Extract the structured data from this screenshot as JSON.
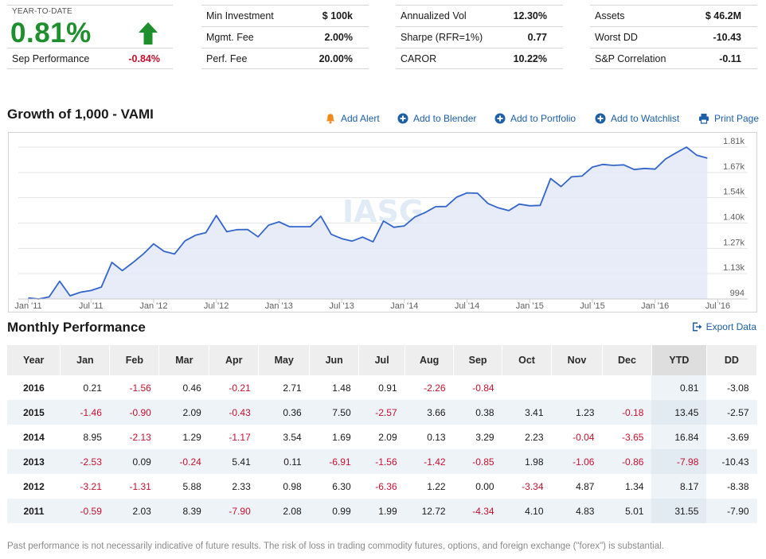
{
  "summary": {
    "ytd_caption": "YEAR-TO-DATE",
    "ytd_value": "0.81%",
    "ytd_arrow_icon": "arrow-up-icon",
    "sep_label": "Sep Performance",
    "sep_value": "-0.84%",
    "colors": {
      "positive": "#1e8f2d",
      "negative": "#c8102e"
    }
  },
  "stats": [
    [
      {
        "label": "Min Investment",
        "value": "$ 100k"
      },
      {
        "label": "Mgmt. Fee",
        "value": "2.00%"
      },
      {
        "label": "Perf. Fee",
        "value": "20.00%"
      }
    ],
    [
      {
        "label": "Annualized Vol",
        "value": "12.30%"
      },
      {
        "label": "Sharpe (RFR=1%)",
        "value": "0.77"
      },
      {
        "label": "CAROR",
        "value": "10.22%"
      }
    ],
    [
      {
        "label": "Assets",
        "value": "$ 46.2M"
      },
      {
        "label": "Worst DD",
        "value": "-10.43"
      },
      {
        "label": "S&P Correlation",
        "value": "-0.11"
      }
    ]
  ],
  "chart_section": {
    "title": "Growth of 1,000 - VAMI",
    "actions": [
      {
        "label": "Add Alert",
        "icon": "bell-icon"
      },
      {
        "label": "Add to Blender",
        "icon": "plus-circle-icon"
      },
      {
        "label": "Add to Portfolio",
        "icon": "plus-circle-icon"
      },
      {
        "label": "Add to Watchlist",
        "icon": "plus-circle-icon"
      },
      {
        "label": "Print Page",
        "icon": "printer-icon"
      }
    ],
    "watermark": "IASG"
  },
  "chart_data": {
    "type": "area",
    "title": "Growth of 1,000 - VAMI",
    "xlabel": "",
    "ylabel": "",
    "x_ticks": [
      "Jan '11",
      "Jul '11",
      "Jan '12",
      "Jul '12",
      "Jan '13",
      "Jul '13",
      "Jan '14",
      "Jul '14",
      "Jan '15",
      "Jul '15",
      "Jan '16",
      "Jul '16"
    ],
    "y_ticks": [
      {
        "value": 994,
        "label": "994"
      },
      {
        "value": 1130,
        "label": "1.13k"
      },
      {
        "value": 1265,
        "label": "1.27k"
      },
      {
        "value": 1400,
        "label": "1.40k"
      },
      {
        "value": 1536,
        "label": "1.54k"
      },
      {
        "value": 1671,
        "label": "1.67k"
      },
      {
        "value": 1807,
        "label": "1.81k"
      }
    ],
    "ylim": [
      994,
      1807
    ],
    "grid": true,
    "line_color": "#3366cc",
    "fill_color": "#e3e9f7",
    "series": [
      {
        "values": [
          1000,
          994,
          1005,
          1089,
          1011,
          1030,
          1039,
          1058,
          1190,
          1146,
          1188,
          1234,
          1289,
          1249,
          1235,
          1305,
          1335,
          1349,
          1441,
          1354,
          1365,
          1366,
          1327,
          1389,
          1407,
          1381,
          1381,
          1381,
          1437,
          1340,
          1317,
          1304,
          1325,
          1300,
          1411,
          1378,
          1385,
          1433,
          1457,
          1488,
          1489,
          1539,
          1562,
          1560,
          1505,
          1482,
          1467,
          1502,
          1493,
          1495,
          1639,
          1596,
          1648,
          1652,
          1700,
          1714,
          1709,
          1712,
          1687,
          1693,
          1689,
          1743,
          1776,
          1807,
          1763,
          1748
        ]
      }
    ]
  },
  "monthly": {
    "title": "Monthly Performance",
    "export_label": "Export Data",
    "export_icon": "export-icon",
    "headers": [
      "Year",
      "Jan",
      "Feb",
      "Mar",
      "Apr",
      "May",
      "Jun",
      "Jul",
      "Aug",
      "Sep",
      "Oct",
      "Nov",
      "Dec",
      "YTD",
      "DD"
    ],
    "rows": [
      [
        "2016",
        "0.21",
        "-1.56",
        "0.46",
        "-0.21",
        "2.71",
        "1.48",
        "0.91",
        "-2.26",
        "-0.84",
        "",
        "",
        "",
        "0.81",
        "-3.08"
      ],
      [
        "2015",
        "-1.46",
        "-0.90",
        "2.09",
        "-0.43",
        "0.36",
        "7.50",
        "-2.57",
        "3.66",
        "0.38",
        "3.41",
        "1.23",
        "-0.18",
        "13.45",
        "-2.57"
      ],
      [
        "2014",
        "8.95",
        "-2.13",
        "1.29",
        "-1.17",
        "3.54",
        "1.69",
        "2.09",
        "0.13",
        "3.29",
        "2.23",
        "-0.04",
        "-3.65",
        "16.84",
        "-3.69"
      ],
      [
        "2013",
        "-2.53",
        "0.09",
        "-0.24",
        "5.41",
        "0.11",
        "-6.91",
        "-1.56",
        "-1.42",
        "-0.85",
        "1.98",
        "-1.06",
        "-0.86",
        "-7.98",
        "-10.43"
      ],
      [
        "2012",
        "-3.21",
        "-1.31",
        "5.88",
        "2.33",
        "0.98",
        "6.30",
        "-6.36",
        "1.22",
        "0.00",
        "-3.34",
        "4.87",
        "1.34",
        "8.17",
        "-8.38"
      ],
      [
        "2011",
        "-0.59",
        "2.03",
        "8.39",
        "-7.90",
        "2.08",
        "0.99",
        "1.99",
        "12.72",
        "-4.34",
        "4.10",
        "4.83",
        "5.01",
        "31.55",
        "-7.90"
      ]
    ]
  },
  "disclaimer": "Past performance is not necessarily indicative of future results. The risk of loss in trading commodity futures, options, and foreign exchange (\"forex\") is substantial."
}
